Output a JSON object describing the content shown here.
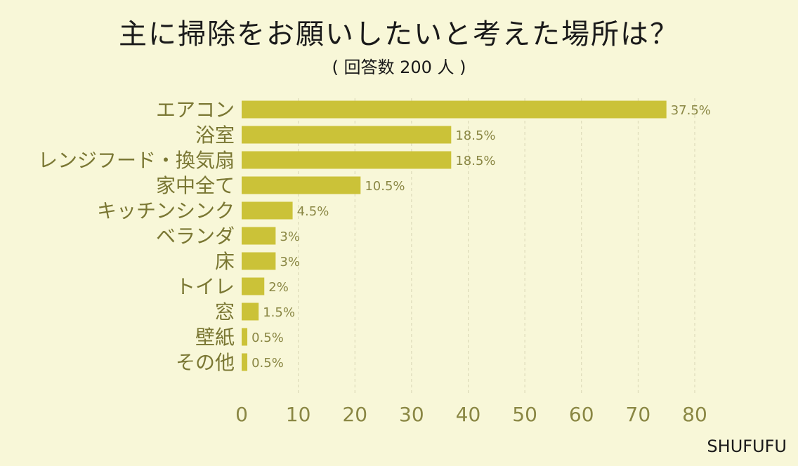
{
  "title": "主に掃除をお願いしたいと考えた場所は？",
  "subtitle": "( 回答数 200 人 )",
  "brand": "SHUFUFU",
  "colors": {
    "background": "#f8f7d8",
    "bar": "#cbc238",
    "category_label": "#7a7733",
    "value_label": "#8a8744",
    "tick_label": "#8a8744",
    "grid": "#d8d6b4"
  },
  "chart_data": {
    "type": "bar",
    "orientation": "horizontal",
    "categories": [
      "エアコン",
      "浴室",
      "レンジフード・換気扇",
      "家中全て",
      "キッチンシンク",
      "ベランダ",
      "床",
      "トイレ",
      "窓",
      "壁紙",
      "その他"
    ],
    "values": [
      75,
      37,
      37,
      21,
      9,
      6,
      6,
      4,
      3,
      1,
      1
    ],
    "data_labels": [
      "37.5%",
      "18.5%",
      "18.5%",
      "10.5%",
      "4.5%",
      "3%",
      "3%",
      "2%",
      "1.5%",
      "0.5%",
      "0.5%"
    ],
    "xlim": [
      0,
      80
    ],
    "xticks": [
      0,
      10,
      20,
      30,
      40,
      50,
      60,
      70,
      80
    ],
    "xlabel": "",
    "ylabel": "",
    "grid": true
  }
}
